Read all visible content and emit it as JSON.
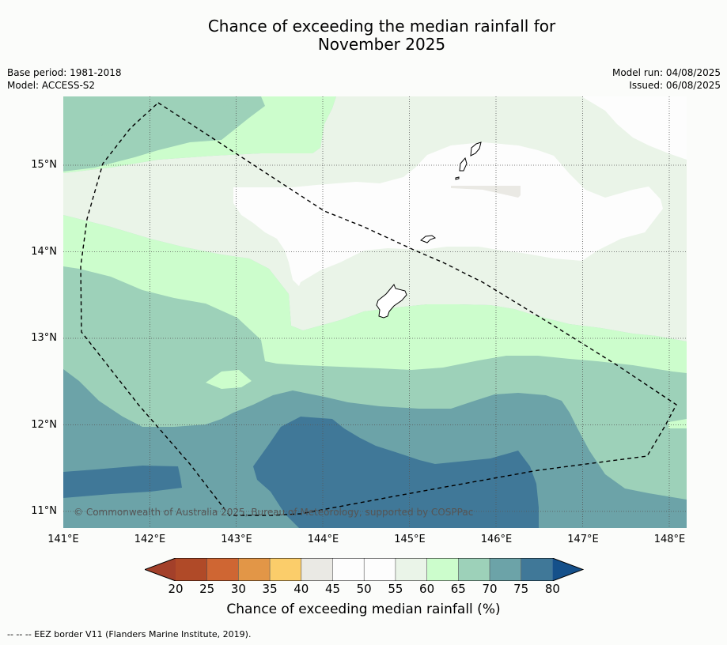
{
  "title": {
    "line1": "Chance of exceeding the median rainfall for",
    "line2": "November 2025"
  },
  "meta": {
    "base_period": "Base period: 1981-2018",
    "model": "Model: ACCESS-S2",
    "model_run": "Model run: 04/08/2025",
    "issued": "Issued: 06/08/2025"
  },
  "map": {
    "lat_labels": [
      "15°N",
      "14°N",
      "13°N",
      "12°N",
      "11°N"
    ],
    "lon_labels": [
      "141°E",
      "142°E",
      "143°E",
      "144°E",
      "145°E",
      "146°E",
      "147°E",
      "148°E"
    ],
    "copyright": "© Commonwealth of Australia 2025, Bureau of Meteorology, supported by COSPPac",
    "colors": {
      "band_20_25": "#b04a28",
      "band_25_30": "#cf6633",
      "band_30_35": "#e29647",
      "band_35_40": "#fbcd6a",
      "band_40_45": "#eae9e4",
      "band_45_50": "#fdfdfd",
      "band_50_55": "#fdfdfd",
      "band_55_60": "#eaf4e8",
      "band_60_65": "#ccfdcc",
      "band_65_70": "#9dd1b9",
      "band_70_75": "#6ca3a8",
      "band_75_80": "#407898",
      "above_80": "#15508a",
      "below_20": "#a3402a"
    }
  },
  "colorbar": {
    "ticks": [
      "20",
      "25",
      "30",
      "35",
      "40",
      "45",
      "50",
      "55",
      "60",
      "65",
      "70",
      "75",
      "80"
    ],
    "label": "Chance of exceeding median rainfall (%)"
  },
  "footnote": "--  --  -- EEZ border V11 (Flanders Marine Institute, 2019)."
}
